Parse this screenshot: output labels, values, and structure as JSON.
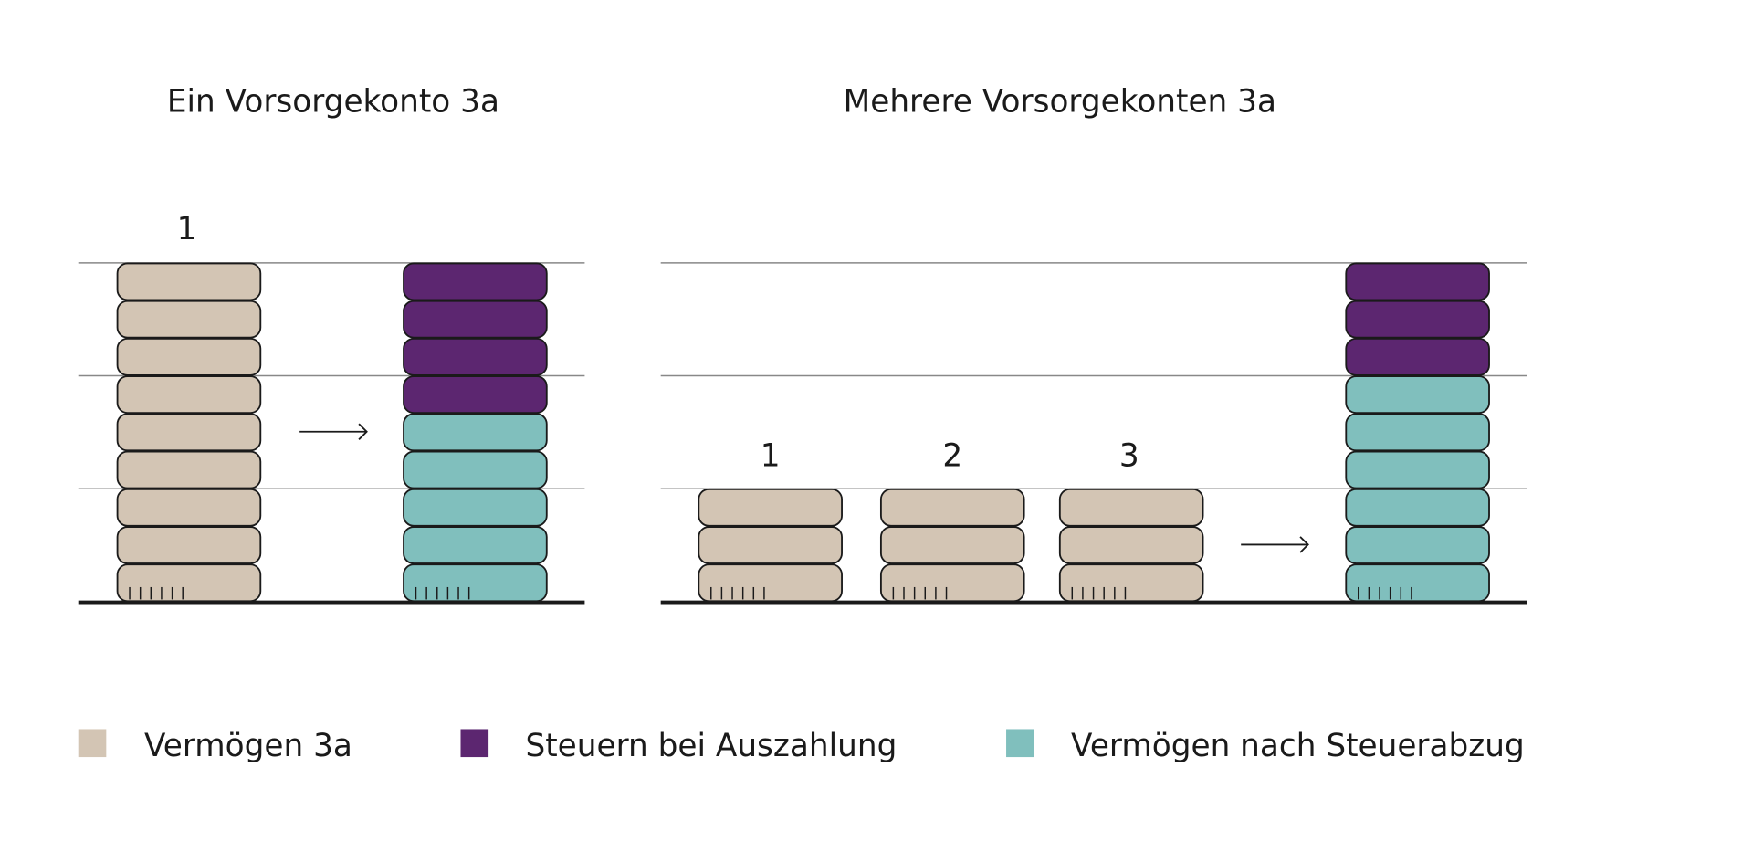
{
  "colors": {
    "vermoegen": "#d3c5b4",
    "steuern": "#5c2670",
    "nach_steuer": "#80bfbd",
    "outline": "#1a1a1a",
    "grid": "#888888"
  },
  "chart_data": [
    {
      "type": "diagram",
      "title": "Ein Vorsorgekonto 3a",
      "accounts": [
        {
          "label": "1",
          "blocks": 9
        }
      ],
      "result": {
        "nach_steuer": 5,
        "steuern": 4
      }
    },
    {
      "type": "diagram",
      "title": "Mehrere Vorsorgekonten 3a",
      "accounts": [
        {
          "label": "1",
          "blocks": 3
        },
        {
          "label": "2",
          "blocks": 3
        },
        {
          "label": "3",
          "blocks": 3
        }
      ],
      "result": {
        "nach_steuer": 6,
        "steuern": 3
      }
    }
  ],
  "legend": [
    {
      "key": "vermoegen",
      "label": "Vermögen 3a"
    },
    {
      "key": "steuern",
      "label": "Steuern bei Auszahlung"
    },
    {
      "key": "nach_steuer",
      "label": "Vermögen nach Steuerabzug"
    }
  ]
}
